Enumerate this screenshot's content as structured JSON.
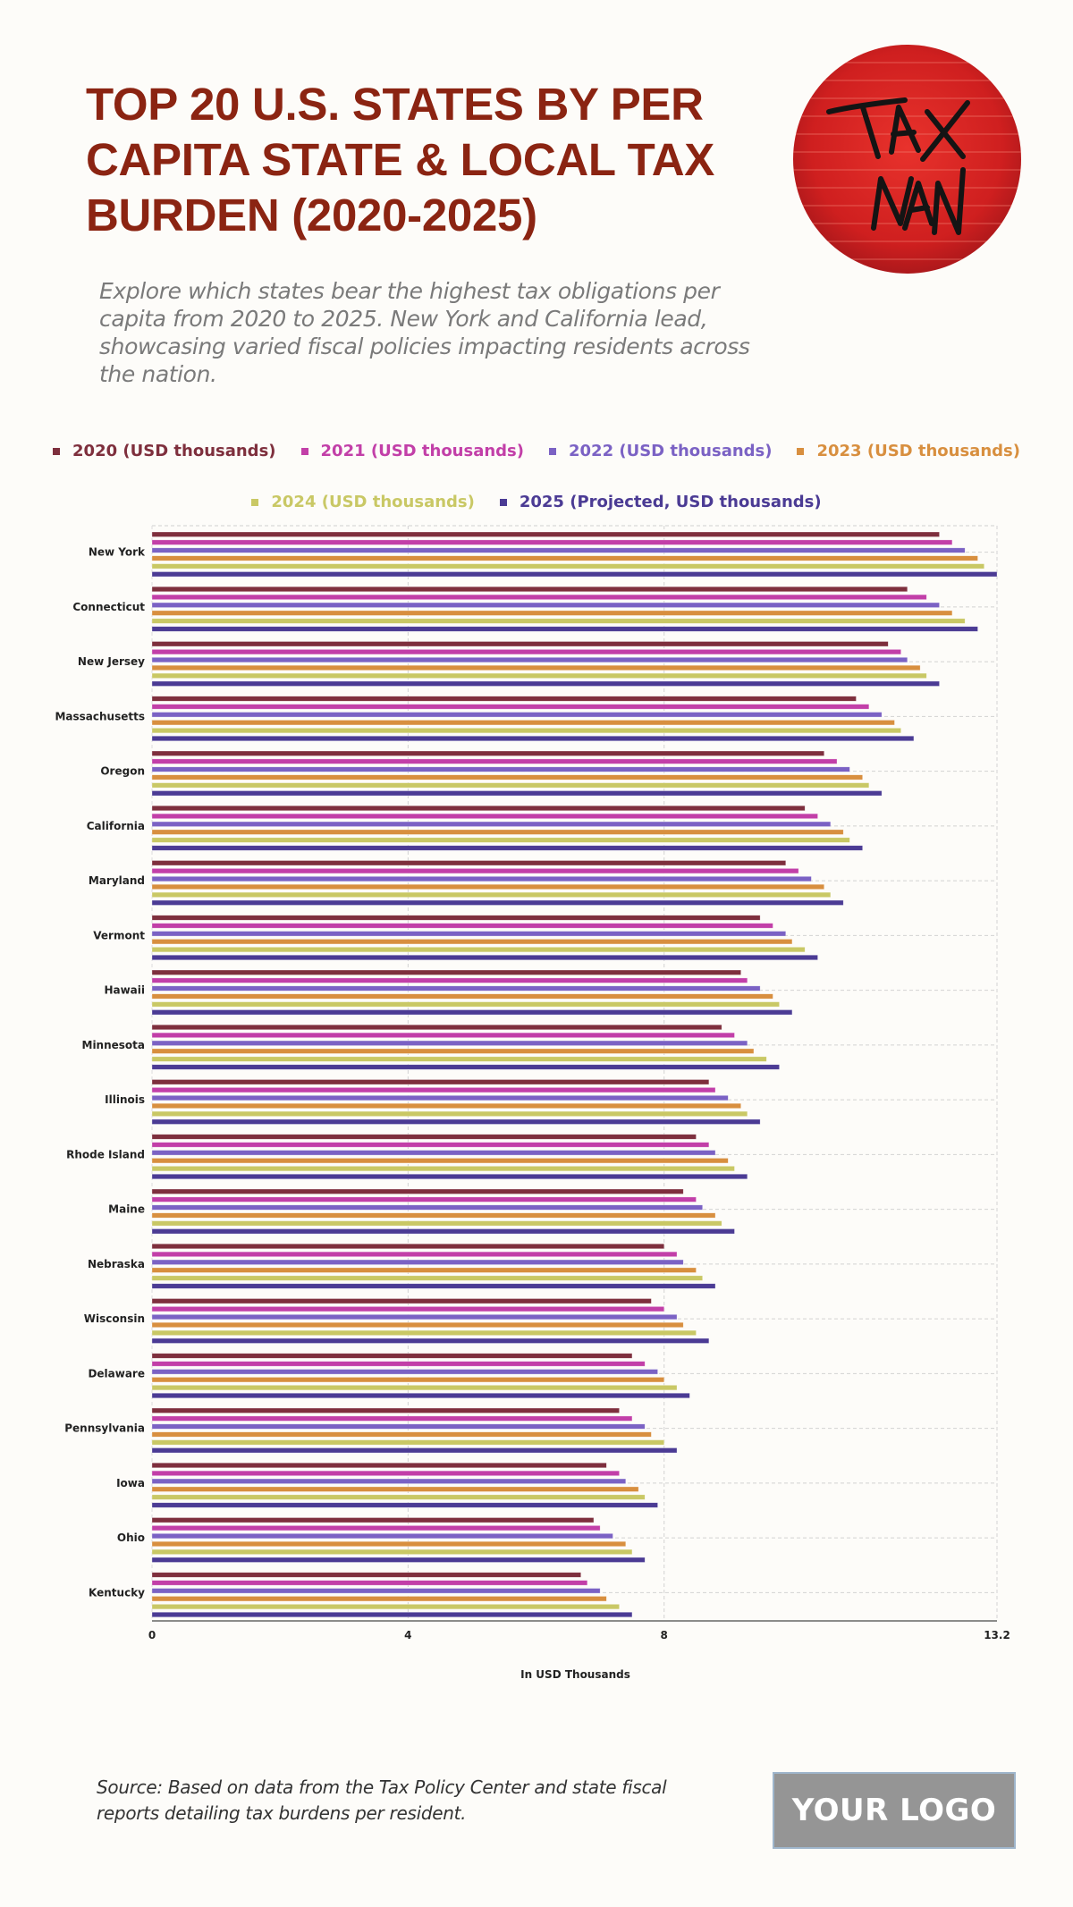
{
  "header": {
    "title": "TOP 20 U.S. STATES BY PER CAPITA STATE & LOCAL TAX BURDEN (2020-2025)",
    "subtitle": "Explore which states bear the highest tax obligations per capita from 2020 to 2025. New York and California lead, showcasing varied fiscal policies impacting residents across the nation.",
    "image_label": "TAX MAN"
  },
  "footer": {
    "source": "Source: Based on data from the Tax Policy Center and state fiscal reports detailing tax burdens per resident.",
    "logo_text": "YOUR LOGO"
  },
  "chart_data": {
    "type": "bar",
    "orientation": "horizontal",
    "title": "TOP 20 U.S. STATES BY PER CAPITA STATE & LOCAL TAX BURDEN (2020-2025)",
    "xlabel": "In USD Thousands",
    "ylabel": "",
    "xlim": [
      0,
      13.2
    ],
    "xticks": [
      "0",
      "4",
      "8",
      "13.2"
    ],
    "xtick_values": [
      0,
      4,
      8,
      13.2
    ],
    "grid": true,
    "legend_position": "top-center",
    "categories": [
      "New York",
      "Connecticut",
      "New Jersey",
      "Massachusetts",
      "Oregon",
      "California",
      "Maryland",
      "Vermont",
      "Hawaii",
      "Minnesota",
      "Illinois",
      "Rhode Island",
      "Maine",
      "Nebraska",
      "Wisconsin",
      "Delaware",
      "Pennsylvania",
      "Iowa",
      "Ohio",
      "Kentucky"
    ],
    "series": [
      {
        "name": "2020 (USD thousands)",
        "color": "#7e2f3d",
        "values": [
          12.3,
          11.8,
          11.5,
          11.0,
          10.5,
          10.2,
          9.9,
          9.5,
          9.2,
          8.9,
          8.7,
          8.5,
          8.3,
          8.0,
          7.8,
          7.5,
          7.3,
          7.1,
          6.9,
          6.7
        ]
      },
      {
        "name": "2021 (USD thousands)",
        "color": "#c23fa8",
        "values": [
          12.5,
          12.1,
          11.7,
          11.2,
          10.7,
          10.4,
          10.1,
          9.7,
          9.3,
          9.1,
          8.8,
          8.7,
          8.5,
          8.2,
          8.0,
          7.7,
          7.5,
          7.3,
          7.0,
          6.8
        ]
      },
      {
        "name": "2022 (USD thousands)",
        "color": "#7b62c4",
        "values": [
          12.7,
          12.3,
          11.8,
          11.4,
          10.9,
          10.6,
          10.3,
          9.9,
          9.5,
          9.3,
          9.0,
          8.8,
          8.6,
          8.3,
          8.2,
          7.9,
          7.7,
          7.4,
          7.2,
          7.0
        ]
      },
      {
        "name": "2023 (USD thousands)",
        "color": "#d88f3f",
        "values": [
          12.9,
          12.5,
          12.0,
          11.6,
          11.1,
          10.8,
          10.5,
          10.0,
          9.7,
          9.4,
          9.2,
          9.0,
          8.8,
          8.5,
          8.3,
          8.0,
          7.8,
          7.6,
          7.4,
          7.1
        ]
      },
      {
        "name": "2024 (USD thousands)",
        "color": "#c9c865",
        "values": [
          13.0,
          12.7,
          12.1,
          11.7,
          11.2,
          10.9,
          10.6,
          10.2,
          9.8,
          9.6,
          9.3,
          9.1,
          8.9,
          8.6,
          8.5,
          8.2,
          8.0,
          7.7,
          7.5,
          7.3
        ]
      },
      {
        "name": "2025 (Projected, USD thousands)",
        "color": "#4b3b94",
        "values": [
          13.2,
          12.9,
          12.3,
          11.9,
          11.4,
          11.1,
          10.8,
          10.4,
          10.0,
          9.8,
          9.5,
          9.3,
          9.1,
          8.8,
          8.7,
          8.4,
          8.2,
          7.9,
          7.7,
          7.5
        ]
      }
    ]
  }
}
